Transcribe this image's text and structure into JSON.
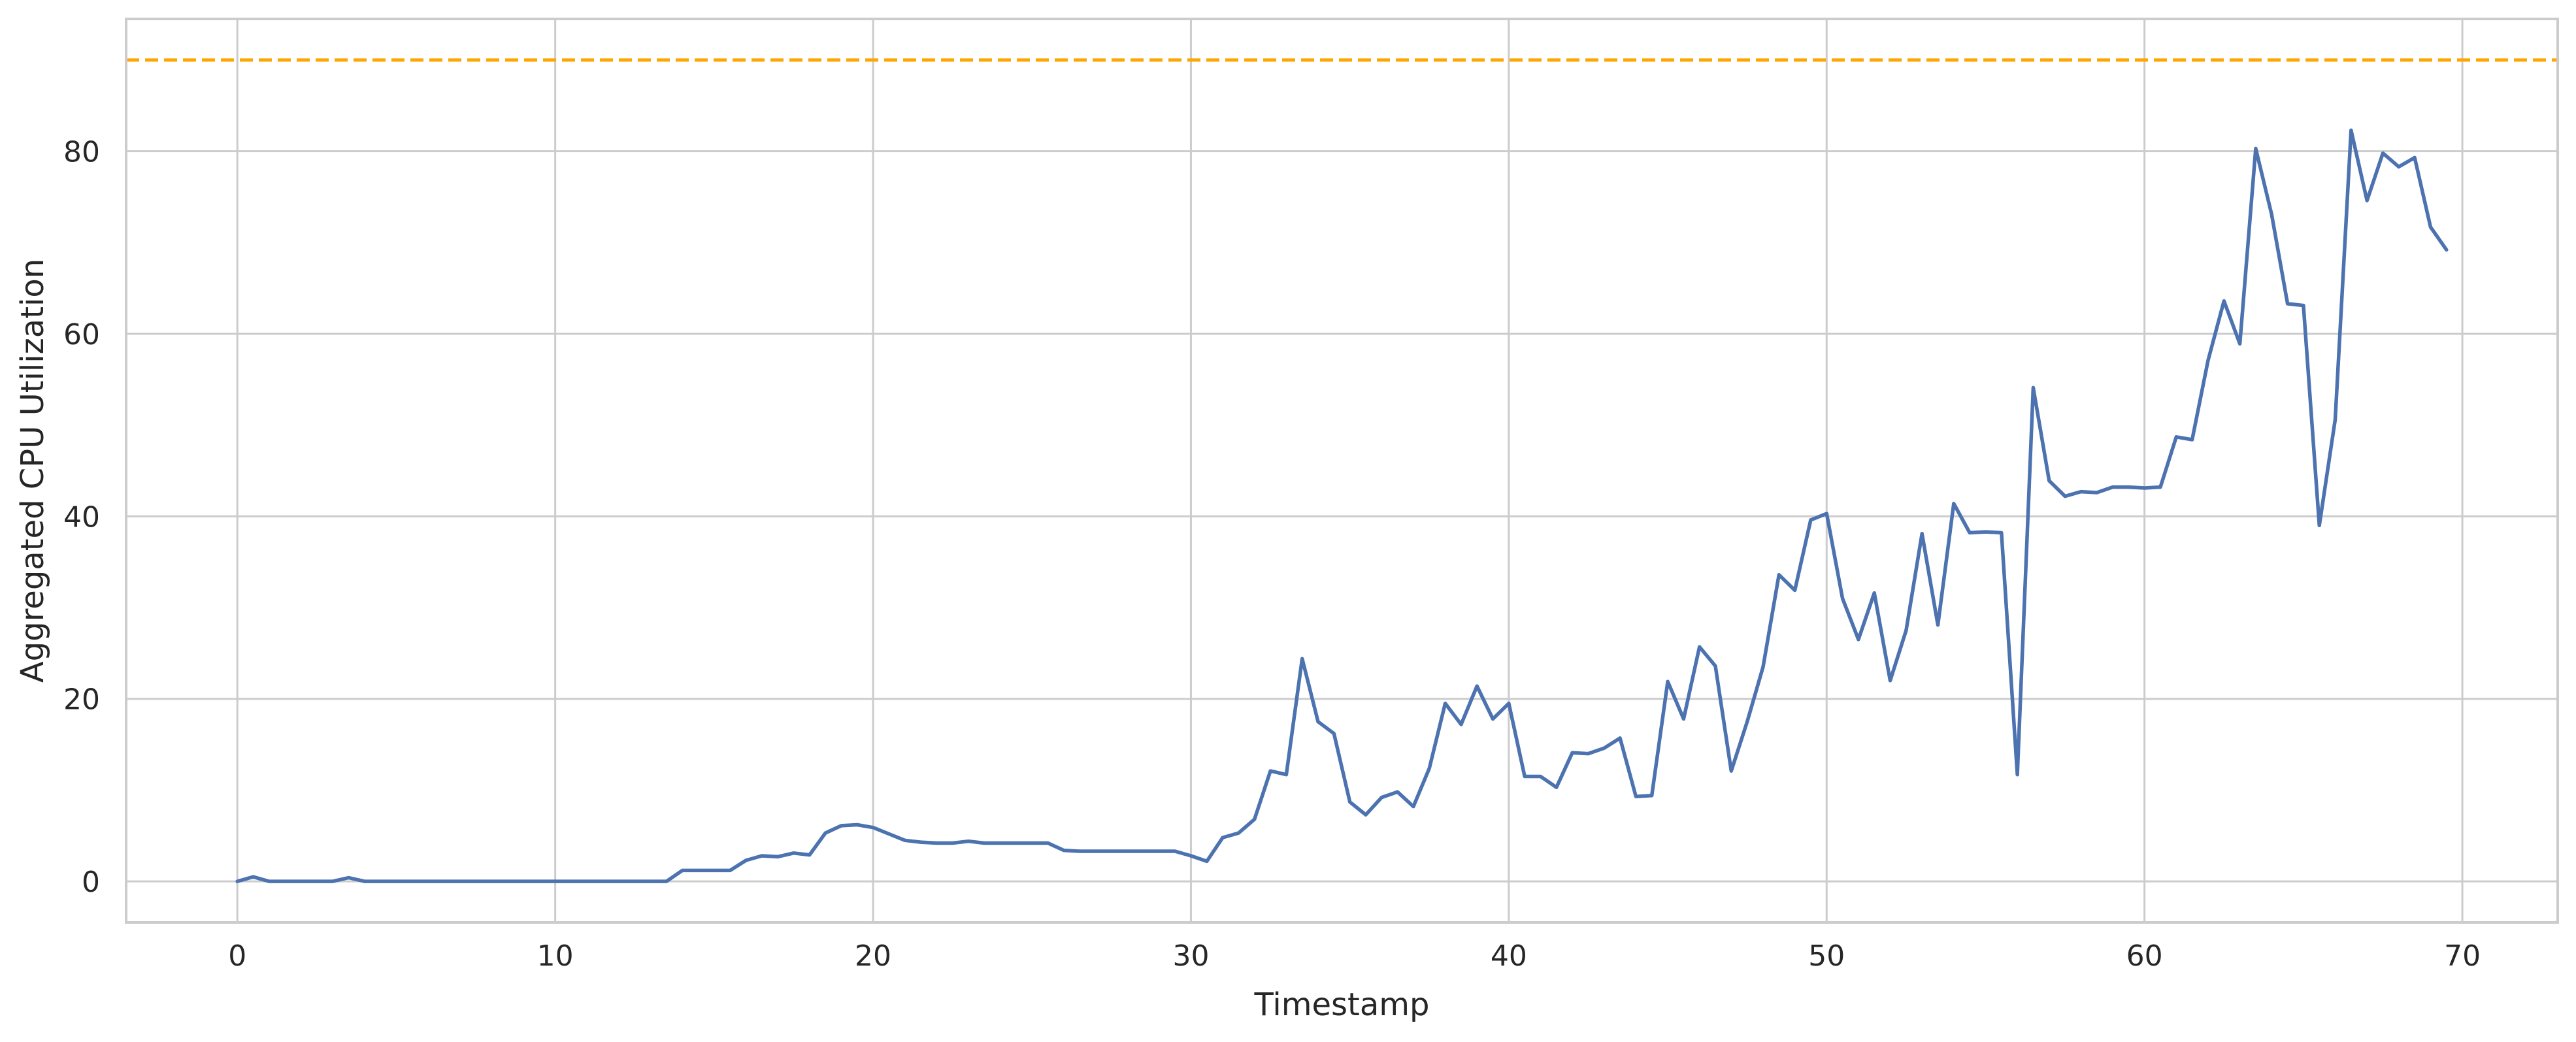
{
  "chart_data": {
    "type": "line",
    "title": "",
    "xlabel": "Timestamp",
    "ylabel": "Aggregated CPU Utilization",
    "xlim": [
      -3.5,
      73
    ],
    "ylim": [
      -4.5,
      94.5
    ],
    "xticks": [
      0,
      10,
      20,
      30,
      40,
      50,
      60,
      70
    ],
    "yticks": [
      0,
      20,
      40,
      60,
      80
    ],
    "grid": true,
    "legend": "none",
    "colors": {
      "line": "#4c72b0",
      "threshold": "#ffa500",
      "grid": "#cccccc",
      "frame": "#cccccc"
    },
    "threshold": {
      "y": 90,
      "style": "dashed"
    },
    "series": [
      {
        "x": [
          0,
          0.5,
          1,
          1.5,
          2,
          2.5,
          3,
          3.5,
          4,
          4.5,
          5,
          5.5,
          6,
          6.5,
          7,
          7.5,
          8,
          8.5,
          9,
          9.5,
          10,
          10.5,
          11,
          11.5,
          12,
          12.5,
          13,
          13.5,
          14,
          14.5,
          15,
          15.5,
          16,
          16.5,
          17,
          17.5,
          18,
          18.5,
          19,
          19.5,
          20,
          20.5,
          21,
          21.5,
          22,
          22.5,
          23,
          23.5,
          24,
          24.5,
          25,
          25.5,
          26,
          26.5,
          27,
          27.5,
          28,
          28.5,
          29,
          29.5,
          30,
          30.5,
          31,
          31.5,
          32,
          32.5,
          33,
          33.5,
          34,
          34.5,
          35,
          35.5,
          36,
          36.5,
          37,
          37.5,
          38,
          38.5,
          39,
          39.5,
          40,
          40.5,
          41,
          41.5,
          42,
          42.5,
          43,
          43.5,
          44,
          44.5,
          45,
          45.5,
          46,
          46.5,
          47,
          47.5,
          48,
          48.5,
          49,
          49.5,
          50,
          50.5,
          51,
          51.5,
          52,
          52.5,
          53,
          53.5,
          54,
          54.5,
          55,
          55.5,
          56,
          56.5,
          57,
          57.5,
          58,
          58.5,
          59,
          59.5,
          60,
          60.5,
          61,
          61.5,
          62,
          62.5,
          63,
          63.5,
          64,
          64.5,
          65,
          65.5,
          66,
          66.5,
          67,
          67.5,
          68,
          68.5,
          69,
          69.5
        ],
        "y": [
          0,
          0.5,
          0,
          0,
          0,
          0,
          0,
          0.4,
          0,
          0,
          0,
          0,
          0,
          0,
          0,
          0,
          0,
          0,
          0,
          0,
          0,
          0,
          0,
          0,
          0,
          0,
          0,
          0,
          1.2,
          1.2,
          1.2,
          1.2,
          2.3,
          2.8,
          2.7,
          3.1,
          2.9,
          5.3,
          6.1,
          6.2,
          5.9,
          5.2,
          4.5,
          4.3,
          4.2,
          4.2,
          4.4,
          4.2,
          4.2,
          4.2,
          4.2,
          4.2,
          3.4,
          3.3,
          3.3,
          3.3,
          3.3,
          3.3,
          3.3,
          3.3,
          2.8,
          2.2,
          4.8,
          5.3,
          6.8,
          12.1,
          11.7,
          24.4,
          17.5,
          16.2,
          8.7,
          7.3,
          9.2,
          9.8,
          8.2,
          12.4,
          19.5,
          17.2,
          21.4,
          17.8,
          19.5,
          11.5,
          11.5,
          10.3,
          14.1,
          14,
          14.6,
          15.7,
          9.3,
          9.4,
          21.9,
          17.8,
          25.7,
          23.6,
          12.1,
          17.5,
          23.5,
          33.6,
          31.9,
          39.6,
          40.3,
          31,
          26.5,
          31.6,
          22,
          27.5,
          38.1,
          28.1,
          41.4,
          38.2,
          38.3,
          38.2,
          11.7,
          54.1,
          43.9,
          42.2,
          42.7,
          42.6,
          43.2,
          43.2,
          43.1,
          43.2,
          48.7,
          48.4,
          57.1,
          63.6,
          58.9,
          80.3,
          73.1,
          63.3,
          63.1,
          39,
          50.6,
          82.3,
          74.6,
          79.8,
          78.3,
          79.3,
          71.7,
          69.2
        ]
      }
    ]
  }
}
